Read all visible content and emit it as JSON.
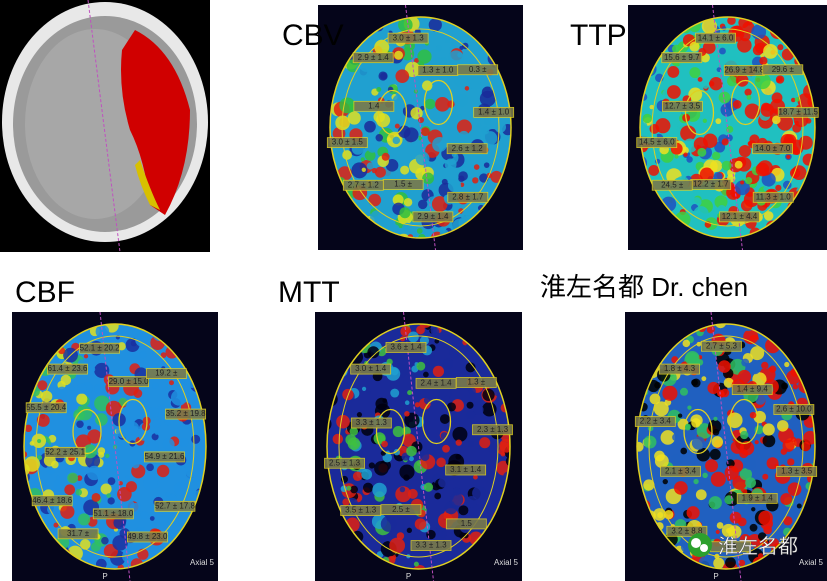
{
  "panels": [
    {
      "title": "CBV",
      "labels": [
        "2.9 ± 1.4",
        "3.0 ± 1.3",
        "1.3 ± 1.0",
        "0.3 ±",
        "1.4 ± 1.0",
        "2.6 ± 1.2",
        "2.8 ± 1.7",
        "2.9 ± 1.4",
        "1.5 ±",
        "2.7 ± 1.2",
        "3.0 ± 1.5",
        "1.4"
      ]
    },
    {
      "title": "TTP",
      "labels": [
        "15.6 ± 9.7",
        "14.1 ± 6.0",
        "26.9 ± 14.8",
        "29.6 ±",
        "18.7 ± 11.5",
        "14.0 ± 7.0",
        "11.3 ± 1.0",
        "12.1 ± 4.4",
        "12.2 ± 1.7",
        "24.5 ±",
        "14.5 ± 6.0",
        "12.7 ± 3.5"
      ]
    },
    {
      "title": "CBF",
      "labels": [
        "61.4 ± 23.6",
        "52.1 ± 20.2",
        "29.0 ± 15.0",
        "19.2 ±",
        "35.2 ± 19.8",
        "54.9 ± 21.6",
        "52.7 ± 17.8",
        "49.8 ± 23.0",
        "51.1 ± 18.0",
        "31.7 ±",
        "46.4 ± 18.6",
        "52.2 ± 25.1",
        "55.5 ± 20.4"
      ]
    },
    {
      "title": "MTT",
      "labels": [
        "3.0 ± 1.4",
        "3.6 ± 1.4",
        "2.4 ± 1.4",
        "1.3 ±",
        "2.3 ± 1.3",
        "3.1 ± 1.4",
        "1.5",
        "3.3 ± 1.3",
        "2.5 ±",
        "3.5 ± 1.3",
        "2.5 ± 1.3",
        "3.3 ± 1.3"
      ]
    },
    {
      "title": "淮左名都 Dr. chen",
      "labels": [
        "1.8 ± 4.3",
        "2.7 ± 5.3",
        "1.4 ± 9.4",
        "2.6 ± 10.0",
        "1.3 ± 3.5",
        "1.9 ± 1.4",
        "3.9",
        "3.2 ± 8.8",
        "2.1 ± 3.4",
        "2.2 ± 3.4"
      ]
    }
  ],
  "footer": {
    "axial": "Axial 5",
    "posterior": "P",
    "watermark": "淮左名都"
  }
}
